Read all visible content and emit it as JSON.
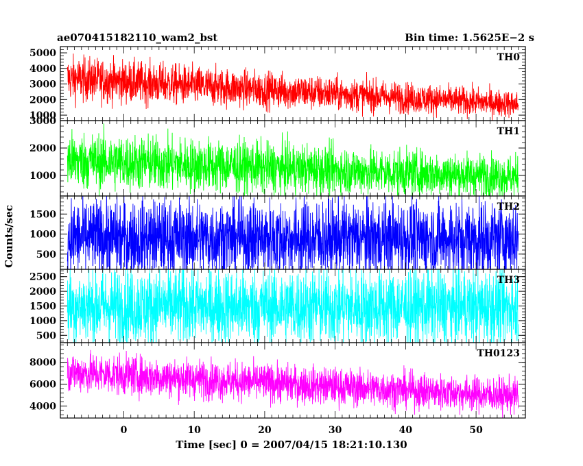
{
  "chart_data": {
    "type": "line",
    "header_left": "ae070415182110_wam2_bst",
    "header_right": "Bin time: 1.5625E−2 s",
    "xlabel": "Time [sec] 0 = 2007/04/15 18:21:10.130",
    "ylabel": "Counts/sec",
    "xlim": [
      -9,
      57
    ],
    "x_range": [
      -8,
      56
    ],
    "x_ticks": [
      0,
      10,
      20,
      30,
      40,
      50
    ],
    "x_tick_labels": [
      "0",
      "10",
      "20",
      "30",
      "40",
      "50"
    ],
    "grid": false,
    "panels": [
      {
        "label": "TH0",
        "color": "#ff0000",
        "ylim": [
          650,
          5400
        ],
        "y_ticks": [
          1000,
          2000,
          3000,
          4000,
          5000
        ],
        "y_tick_labels": [
          "1000",
          "2000",
          "3000",
          "4000",
          "5000"
        ],
        "mean_start": 3350,
        "mean_end": 1700,
        "spread_start": 1700,
        "spread_end": 1000
      },
      {
        "label": "TH1",
        "color": "#00ff00",
        "ylim": [
          250,
          3000
        ],
        "y_ticks": [
          1000,
          2000,
          3000
        ],
        "y_tick_labels": [
          "1000",
          "2000",
          "3000"
        ],
        "mean_start": 1550,
        "mean_end": 950,
        "spread_start": 1250,
        "spread_end": 900
      },
      {
        "label": "TH2",
        "color": "#0000ff",
        "ylim": [
          120,
          1950
        ],
        "y_ticks": [
          500,
          1000,
          1500
        ],
        "y_tick_labels": [
          "500",
          "1000",
          "1500"
        ],
        "mean_start": 900,
        "mean_end": 880,
        "spread_start": 1150,
        "spread_end": 1150
      },
      {
        "label": "TH3",
        "color": "#00ffff",
        "ylim": [
          250,
          2750
        ],
        "y_ticks": [
          500,
          1000,
          1500,
          2000,
          2500
        ],
        "y_tick_labels": [
          "500",
          "1000",
          "1500",
          "2000",
          "2500"
        ],
        "mean_start": 1500,
        "mean_end": 1450,
        "spread_start": 1550,
        "spread_end": 1550
      },
      {
        "label": "TH0123",
        "color": "#ff00ff",
        "ylim": [
          2900,
          9800
        ],
        "y_ticks": [
          4000,
          6000,
          8000
        ],
        "y_tick_labels": [
          "4000",
          "6000",
          "8000"
        ],
        "mean_start": 7100,
        "mean_end": 4900,
        "spread_start": 2200,
        "spread_end": 1900
      }
    ]
  }
}
